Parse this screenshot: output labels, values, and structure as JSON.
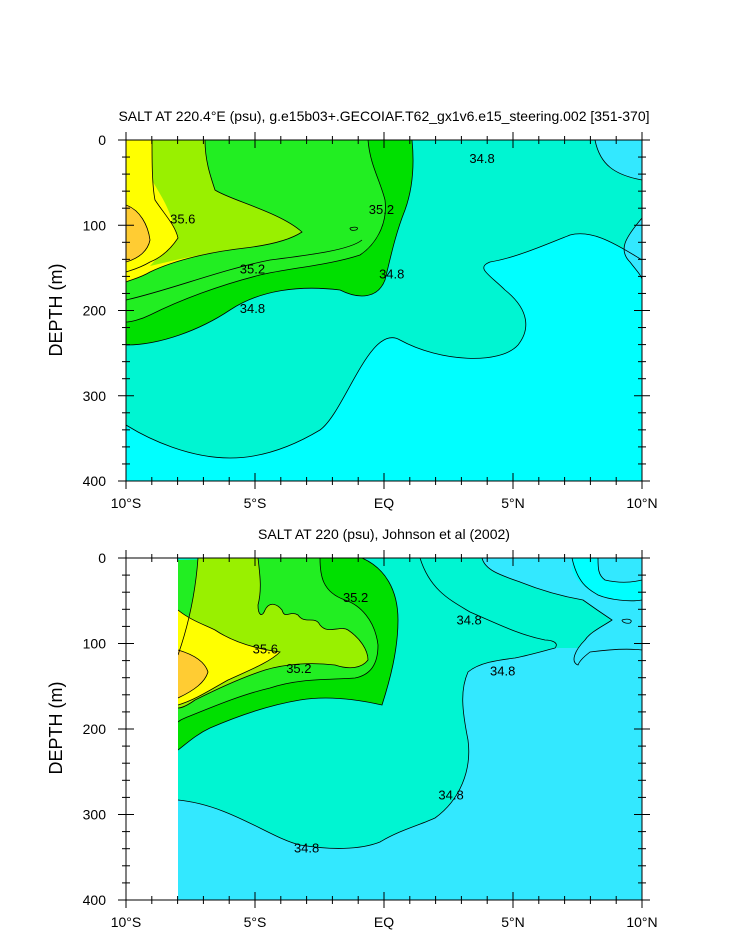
{
  "colors": {
    "s_lt_34_6": "#00ffff",
    "s_34_6_34_8": "#33e8ff",
    "s_34_8_35_0": "#00f5d2",
    "s_35_0_35_2": "#00e000",
    "s_35_2_35_4": "#22ee22",
    "s_35_4_35_6": "#99f000",
    "s_35_6_35_8": "#ffff00",
    "s_gt_35_8": "#ffcc33"
  },
  "chart_data": [
    {
      "type": "contour",
      "title": "SALT AT 220.4°E (psu), g.e15b03+.GECOIAF.T62_gx1v6.e15_steering.002 [351-370]",
      "ylabel": "DEPTH (m)",
      "xlabel": "",
      "xlim": [
        -10,
        10
      ],
      "ylim": [
        400,
        0
      ],
      "xticks": [
        -10,
        -5,
        0,
        5,
        10
      ],
      "xtick_labels": [
        "10°S",
        "5°S",
        "EQ",
        "5°N",
        "10°N"
      ],
      "yticks": [
        0,
        100,
        200,
        300,
        400
      ],
      "ytick_labels": [
        "0",
        "100",
        "200",
        "300",
        "400"
      ],
      "contour_interval": 0.2,
      "contour_labels": [
        {
          "text": "35.6",
          "x": -7.8,
          "y": 93
        },
        {
          "text": "35.2",
          "x": -5.1,
          "y": 152
        },
        {
          "text": "34.8",
          "x": -5.1,
          "y": 198
        },
        {
          "text": "35.2",
          "x": -0.1,
          "y": 82
        },
        {
          "text": "34.8",
          "x": 0.3,
          "y": 158
        },
        {
          "text": "34.8",
          "x": 3.8,
          "y": 22
        }
      ],
      "max_salinity_core": {
        "x": -10,
        "depth": 130,
        "salinity_range": ">35.8"
      }
    },
    {
      "type": "contour",
      "title": "SALT AT 220 (psu), Johnson et al (2002)",
      "ylabel": "DEPTH (m)",
      "xlabel": "",
      "xlim": [
        -10,
        10
      ],
      "ylim": [
        400,
        0
      ],
      "data_xrange": [
        -8,
        10
      ],
      "xticks": [
        -10,
        -5,
        0,
        5,
        10
      ],
      "xtick_labels": [
        "10°S",
        "5°S",
        "EQ",
        "5°N",
        "10°N"
      ],
      "yticks": [
        0,
        100,
        200,
        300,
        400
      ],
      "ytick_labels": [
        "0",
        "100",
        "200",
        "300",
        "400"
      ],
      "contour_interval": 0.2,
      "contour_labels": [
        {
          "text": "35.2",
          "x": -1.1,
          "y": 47
        },
        {
          "text": "35.6",
          "x": -4.6,
          "y": 107
        },
        {
          "text": "35.2",
          "x": -3.3,
          "y": 130
        },
        {
          "text": "34.8",
          "x": 3.3,
          "y": 73
        },
        {
          "text": "34.8",
          "x": 4.6,
          "y": 133
        },
        {
          "text": "34.8",
          "x": 2.6,
          "y": 278
        },
        {
          "text": "34.8",
          "x": -3.0,
          "y": 340
        }
      ],
      "max_salinity_core": {
        "x": -8,
        "depth": 125,
        "salinity_range": ">35.8"
      }
    }
  ]
}
